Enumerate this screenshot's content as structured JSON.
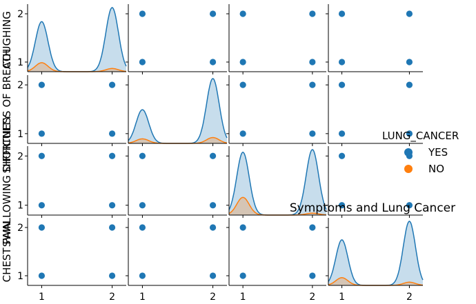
{
  "chart_data": {
    "type": "pairplot",
    "title": "Symptoms and Lung Cancer",
    "variables": [
      "COUGHING",
      "SHORTNESS OF BREATH",
      "SWALLOWING DIFFICULTY",
      "CHEST PAIN"
    ],
    "axis_ticks": [
      "1",
      "2"
    ],
    "axis_range": [
      0.8,
      2.2
    ],
    "hue": "LUNG_CANCER",
    "legend": {
      "title": "LUNG_CANCER",
      "placement": "right",
      "entries": [
        {
          "label": "YES",
          "color": "#1f77b4"
        },
        {
          "label": "NO",
          "color": "#ff7f0e"
        }
      ]
    },
    "scatter_points": [
      [
        1,
        1
      ],
      [
        1,
        2
      ],
      [
        2,
        1
      ],
      [
        2,
        2
      ]
    ],
    "diagonal_kde": [
      {
        "variable": "COUGHING",
        "yes_peaks": [
          0.78,
          1.0
        ],
        "no_peaks": [
          0.14,
          0.05
        ]
      },
      {
        "variable": "SHORTNESS OF BREATH",
        "yes_peaks": [
          0.52,
          1.0
        ],
        "no_peaks": [
          0.07,
          0.09
        ]
      },
      {
        "variable": "SWALLOWING DIFFICULTY",
        "yes_peaks": [
          0.96,
          1.0
        ],
        "no_peaks": [
          0.27,
          0.03
        ]
      },
      {
        "variable": "CHEST PAIN",
        "yes_peaks": [
          0.71,
          1.0
        ],
        "no_peaks": [
          0.12,
          0.05
        ]
      }
    ]
  }
}
